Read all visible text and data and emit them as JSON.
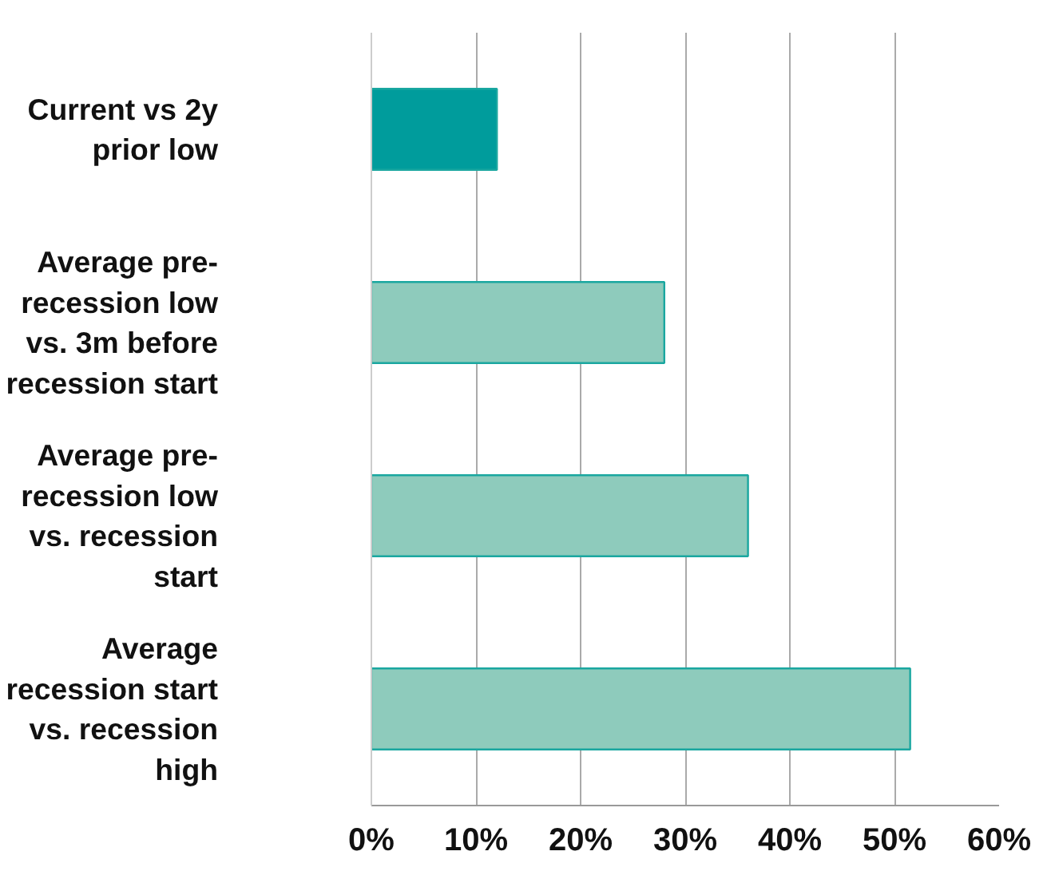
{
  "chart_data": {
    "type": "bar",
    "orientation": "horizontal",
    "categories": [
      "Current vs 2y prior low",
      "Average pre-recession low vs. 3m before recession start",
      "Average pre-recession low vs. recession start",
      "Average recession start vs. recession high"
    ],
    "values": [
      12,
      28,
      36,
      51.5
    ],
    "colors": [
      "#009c9c",
      "#8ecbbc",
      "#8ecbbc",
      "#8ecbbc"
    ],
    "xlim": [
      0,
      60
    ],
    "xticks": [
      {
        "value": 0,
        "label": "0%"
      },
      {
        "value": 10,
        "label": "10%"
      },
      {
        "value": 20,
        "label": "20%"
      },
      {
        "value": 30,
        "label": "30%"
      },
      {
        "value": 40,
        "label": "40%"
      },
      {
        "value": 50,
        "label": "50%"
      },
      {
        "value": 60,
        "label": "60%"
      }
    ],
    "grid": "x"
  }
}
